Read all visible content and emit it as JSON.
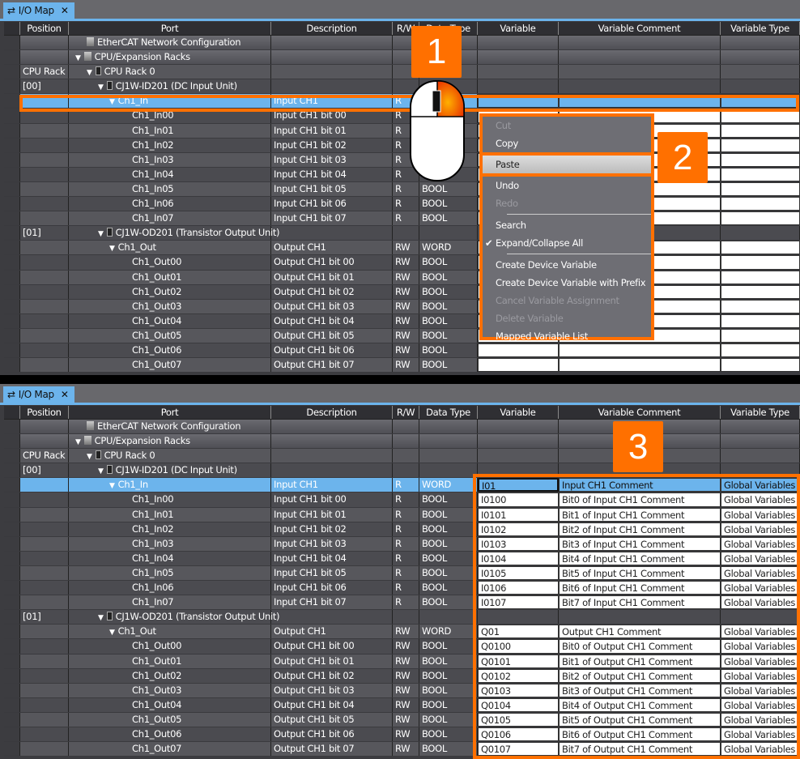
{
  "tab_label": "I/O Map",
  "columns": [
    "Position",
    "Port",
    "Description",
    "R/W",
    "Data Type",
    "Variable",
    "Variable Comment",
    "Variable Type"
  ],
  "top_rows": [
    {
      "pos": "",
      "port": "EtherCAT Network Configuration",
      "indent": 1,
      "icon": "network-icon",
      "desc": "",
      "rw": "",
      "type": "",
      "kind": "grp"
    },
    {
      "pos": "",
      "port": "CPU/Expansion Racks",
      "indent": 0,
      "icon": "network-icon",
      "expand": true,
      "desc": "",
      "rw": "",
      "type": "",
      "kind": "grp"
    },
    {
      "pos": "CPU Rack",
      "port": "CPU Rack 0",
      "indent": 1,
      "icon": "rack-icon",
      "expand": true,
      "desc": "",
      "rw": "",
      "type": "",
      "kind": "a"
    },
    {
      "pos": "[00]",
      "port": "CJ1W-ID201 (DC Input Unit)",
      "indent": 2,
      "icon": "unit-icon",
      "expand": true,
      "desc": "",
      "rw": "",
      "type": "",
      "kind": "b"
    },
    {
      "pos": "",
      "port": "Ch1_In",
      "indent": 3,
      "expand": true,
      "desc": "Input CH1",
      "rw": "R",
      "type": "",
      "kind": "sel"
    },
    {
      "pos": "",
      "port": "Ch1_In00",
      "indent": 5,
      "desc": "Input CH1 bit 00",
      "rw": "R",
      "type": "",
      "kind": "w"
    },
    {
      "pos": "",
      "port": "Ch1_In01",
      "indent": 5,
      "desc": "Input CH1 bit 01",
      "rw": "R",
      "type": "",
      "kind": "w"
    },
    {
      "pos": "",
      "port": "Ch1_In02",
      "indent": 5,
      "desc": "Input CH1 bit 02",
      "rw": "R",
      "type": "",
      "kind": "w"
    },
    {
      "pos": "",
      "port": "Ch1_In03",
      "indent": 5,
      "desc": "Input CH1 bit 03",
      "rw": "R",
      "type": "",
      "kind": "w"
    },
    {
      "pos": "",
      "port": "Ch1_In04",
      "indent": 5,
      "desc": "Input CH1 bit 04",
      "rw": "R",
      "type": "",
      "kind": "w"
    },
    {
      "pos": "",
      "port": "Ch1_In05",
      "indent": 5,
      "desc": "Input CH1 bit 05",
      "rw": "R",
      "type": "BOOL",
      "kind": "w"
    },
    {
      "pos": "",
      "port": "Ch1_In06",
      "indent": 5,
      "desc": "Input CH1 bit 06",
      "rw": "R",
      "type": "BOOL",
      "kind": "w"
    },
    {
      "pos": "",
      "port": "Ch1_In07",
      "indent": 5,
      "desc": "Input CH1 bit 07",
      "rw": "R",
      "type": "BOOL",
      "kind": "w"
    },
    {
      "pos": "[01]",
      "port": "CJ1W-OD201 (Transistor Output Unit)",
      "indent": 2,
      "icon": "unit-icon",
      "expand": true,
      "desc": "",
      "rw": "",
      "type": "",
      "kind": "b"
    },
    {
      "pos": "",
      "port": "Ch1_Out",
      "indent": 3,
      "expand": true,
      "desc": "Output CH1",
      "rw": "RW",
      "type": "WORD",
      "kind": "w"
    },
    {
      "pos": "",
      "port": "Ch1_Out00",
      "indent": 5,
      "desc": "Output CH1 bit 00",
      "rw": "RW",
      "type": "BOOL",
      "kind": "w"
    },
    {
      "pos": "",
      "port": "Ch1_Out01",
      "indent": 5,
      "desc": "Output CH1 bit 01",
      "rw": "RW",
      "type": "BOOL",
      "kind": "w"
    },
    {
      "pos": "",
      "port": "Ch1_Out02",
      "indent": 5,
      "desc": "Output CH1 bit 02",
      "rw": "RW",
      "type": "BOOL",
      "kind": "w"
    },
    {
      "pos": "",
      "port": "Ch1_Out03",
      "indent": 5,
      "desc": "Output CH1 bit 03",
      "rw": "RW",
      "type": "BOOL",
      "kind": "w"
    },
    {
      "pos": "",
      "port": "Ch1_Out04",
      "indent": 5,
      "desc": "Output CH1 bit 04",
      "rw": "RW",
      "type": "BOOL",
      "kind": "w"
    },
    {
      "pos": "",
      "port": "Ch1_Out05",
      "indent": 5,
      "desc": "Output CH1 bit 05",
      "rw": "RW",
      "type": "BOOL",
      "kind": "w"
    },
    {
      "pos": "",
      "port": "Ch1_Out06",
      "indent": 5,
      "desc": "Output CH1 bit 06",
      "rw": "RW",
      "type": "BOOL",
      "kind": "w"
    },
    {
      "pos": "",
      "port": "Ch1_Out07",
      "indent": 5,
      "desc": "Output CH1 bit 07",
      "rw": "RW",
      "type": "BOOL",
      "kind": "w"
    }
  ],
  "bottom_rows": [
    {
      "pos": "",
      "port": "EtherCAT Network Configuration",
      "indent": 1,
      "icon": "network-icon",
      "desc": "",
      "rw": "",
      "type": "",
      "kind": "grp"
    },
    {
      "pos": "",
      "port": "CPU/Expansion Racks",
      "indent": 0,
      "icon": "network-icon",
      "expand": true,
      "desc": "",
      "rw": "",
      "type": "",
      "kind": "grp"
    },
    {
      "pos": "CPU Rack",
      "port": "CPU Rack 0",
      "indent": 1,
      "icon": "rack-icon",
      "expand": true,
      "desc": "",
      "rw": "",
      "type": "",
      "kind": "a"
    },
    {
      "pos": "[00]",
      "port": "CJ1W-ID201 (DC Input Unit)",
      "indent": 2,
      "icon": "unit-icon",
      "expand": true,
      "desc": "",
      "rw": "",
      "type": "",
      "kind": "b"
    },
    {
      "pos": "",
      "port": "Ch1_In",
      "indent": 3,
      "expand": true,
      "desc": "Input CH1",
      "rw": "R",
      "type": "WORD",
      "kind": "sel",
      "var": "I01",
      "comment": "Input CH1 Comment",
      "vtype": "Global Variables"
    },
    {
      "pos": "",
      "port": "Ch1_In00",
      "indent": 5,
      "desc": "Input CH1 bit 00",
      "rw": "R",
      "type": "BOOL",
      "kind": "w",
      "var": "I0100",
      "comment": "Bit0 of Input CH1 Comment",
      "vtype": "Global Variables"
    },
    {
      "pos": "",
      "port": "Ch1_In01",
      "indent": 5,
      "desc": "Input CH1 bit 01",
      "rw": "R",
      "type": "BOOL",
      "kind": "w",
      "var": "I0101",
      "comment": "Bit1 of Input CH1 Comment",
      "vtype": "Global Variables"
    },
    {
      "pos": "",
      "port": "Ch1_In02",
      "indent": 5,
      "desc": "Input CH1 bit 02",
      "rw": "R",
      "type": "BOOL",
      "kind": "w",
      "var": "I0102",
      "comment": "Bit2 of Input CH1 Comment",
      "vtype": "Global Variables"
    },
    {
      "pos": "",
      "port": "Ch1_In03",
      "indent": 5,
      "desc": "Input CH1 bit 03",
      "rw": "R",
      "type": "BOOL",
      "kind": "w",
      "var": "I0103",
      "comment": "Bit3 of Input CH1 Comment",
      "vtype": "Global Variables"
    },
    {
      "pos": "",
      "port": "Ch1_In04",
      "indent": 5,
      "desc": "Input CH1 bit 04",
      "rw": "R",
      "type": "BOOL",
      "kind": "w",
      "var": "I0104",
      "comment": "Bit4 of Input CH1 Comment",
      "vtype": "Global Variables"
    },
    {
      "pos": "",
      "port": "Ch1_In05",
      "indent": 5,
      "desc": "Input CH1 bit 05",
      "rw": "R",
      "type": "BOOL",
      "kind": "w",
      "var": "I0105",
      "comment": "Bit5 of Input CH1 Comment",
      "vtype": "Global Variables"
    },
    {
      "pos": "",
      "port": "Ch1_In06",
      "indent": 5,
      "desc": "Input CH1 bit 06",
      "rw": "R",
      "type": "BOOL",
      "kind": "w",
      "var": "I0106",
      "comment": "Bit6 of Input CH1 Comment",
      "vtype": "Global Variables"
    },
    {
      "pos": "",
      "port": "Ch1_In07",
      "indent": 5,
      "desc": "Input CH1 bit 07",
      "rw": "R",
      "type": "BOOL",
      "kind": "w",
      "var": "I0107",
      "comment": "Bit7 of Input CH1 Comment",
      "vtype": "Global Variables"
    },
    {
      "pos": "[01]",
      "port": "CJ1W-OD201 (Transistor Output Unit)",
      "indent": 2,
      "icon": "unit-icon",
      "expand": true,
      "desc": "",
      "rw": "",
      "type": "",
      "kind": "b"
    },
    {
      "pos": "",
      "port": "Ch1_Out",
      "indent": 3,
      "expand": true,
      "desc": "Output CH1",
      "rw": "RW",
      "type": "WORD",
      "kind": "w",
      "var": "Q01",
      "comment": "Output CH1 Comment",
      "vtype": "Global Variables"
    },
    {
      "pos": "",
      "port": "Ch1_Out00",
      "indent": 5,
      "desc": "Output CH1 bit 00",
      "rw": "RW",
      "type": "BOOL",
      "kind": "w",
      "var": "Q0100",
      "comment": "Bit0 of Output CH1 Comment",
      "vtype": "Global Variables"
    },
    {
      "pos": "",
      "port": "Ch1_Out01",
      "indent": 5,
      "desc": "Output CH1 bit 01",
      "rw": "RW",
      "type": "BOOL",
      "kind": "w",
      "var": "Q0101",
      "comment": "Bit1 of Output CH1 Comment",
      "vtype": "Global Variables"
    },
    {
      "pos": "",
      "port": "Ch1_Out02",
      "indent": 5,
      "desc": "Output CH1 bit 02",
      "rw": "RW",
      "type": "BOOL",
      "kind": "w",
      "var": "Q0102",
      "comment": "Bit2 of Output CH1 Comment",
      "vtype": "Global Variables"
    },
    {
      "pos": "",
      "port": "Ch1_Out03",
      "indent": 5,
      "desc": "Output CH1 bit 03",
      "rw": "RW",
      "type": "BOOL",
      "kind": "w",
      "var": "Q0103",
      "comment": "Bit3 of Output CH1 Comment",
      "vtype": "Global Variables"
    },
    {
      "pos": "",
      "port": "Ch1_Out04",
      "indent": 5,
      "desc": "Output CH1 bit 04",
      "rw": "RW",
      "type": "BOOL",
      "kind": "w",
      "var": "Q0104",
      "comment": "Bit4 of Output CH1 Comment",
      "vtype": "Global Variables"
    },
    {
      "pos": "",
      "port": "Ch1_Out05",
      "indent": 5,
      "desc": "Output CH1 bit 05",
      "rw": "RW",
      "type": "BOOL",
      "kind": "w",
      "var": "Q0105",
      "comment": "Bit5 of Output CH1 Comment",
      "vtype": "Global Variables"
    },
    {
      "pos": "",
      "port": "Ch1_Out06",
      "indent": 5,
      "desc": "Output CH1 bit 06",
      "rw": "RW",
      "type": "BOOL",
      "kind": "w",
      "var": "Q0106",
      "comment": "Bit6 of Output CH1 Comment",
      "vtype": "Global Variables"
    },
    {
      "pos": "",
      "port": "Ch1_Out07",
      "indent": 5,
      "desc": "Output CH1 bit 07",
      "rw": "RW",
      "type": "BOOL",
      "kind": "w",
      "var": "Q0107",
      "comment": "Bit7 of Output CH1 Comment",
      "vtype": "Global Variables"
    }
  ],
  "context_menu": [
    {
      "label": "Cut",
      "disabled": true
    },
    {
      "label": "Copy",
      "disabled": false
    },
    {
      "label": "Paste",
      "disabled": false,
      "highlighted": true
    },
    {
      "label": "Undo",
      "disabled": false
    },
    {
      "label": "Redo",
      "disabled": true
    },
    {
      "sep": true
    },
    {
      "label": "Search",
      "disabled": false
    },
    {
      "label": "Expand/Collapse All",
      "disabled": false,
      "checked": true
    },
    {
      "sep": true
    },
    {
      "label": "Create Device Variable",
      "disabled": false
    },
    {
      "label": "Create Device Variable with Prefix",
      "disabled": false
    },
    {
      "label": "Cancel Variable Assignment",
      "disabled": true
    },
    {
      "label": "Delete Variable",
      "disabled": true
    },
    {
      "label": "Mapped Variable List",
      "disabled": false
    }
  ],
  "steps": [
    "1",
    "2",
    "3"
  ],
  "colors": {
    "accent": "#ff7000",
    "selection": "#6cb4ec"
  }
}
